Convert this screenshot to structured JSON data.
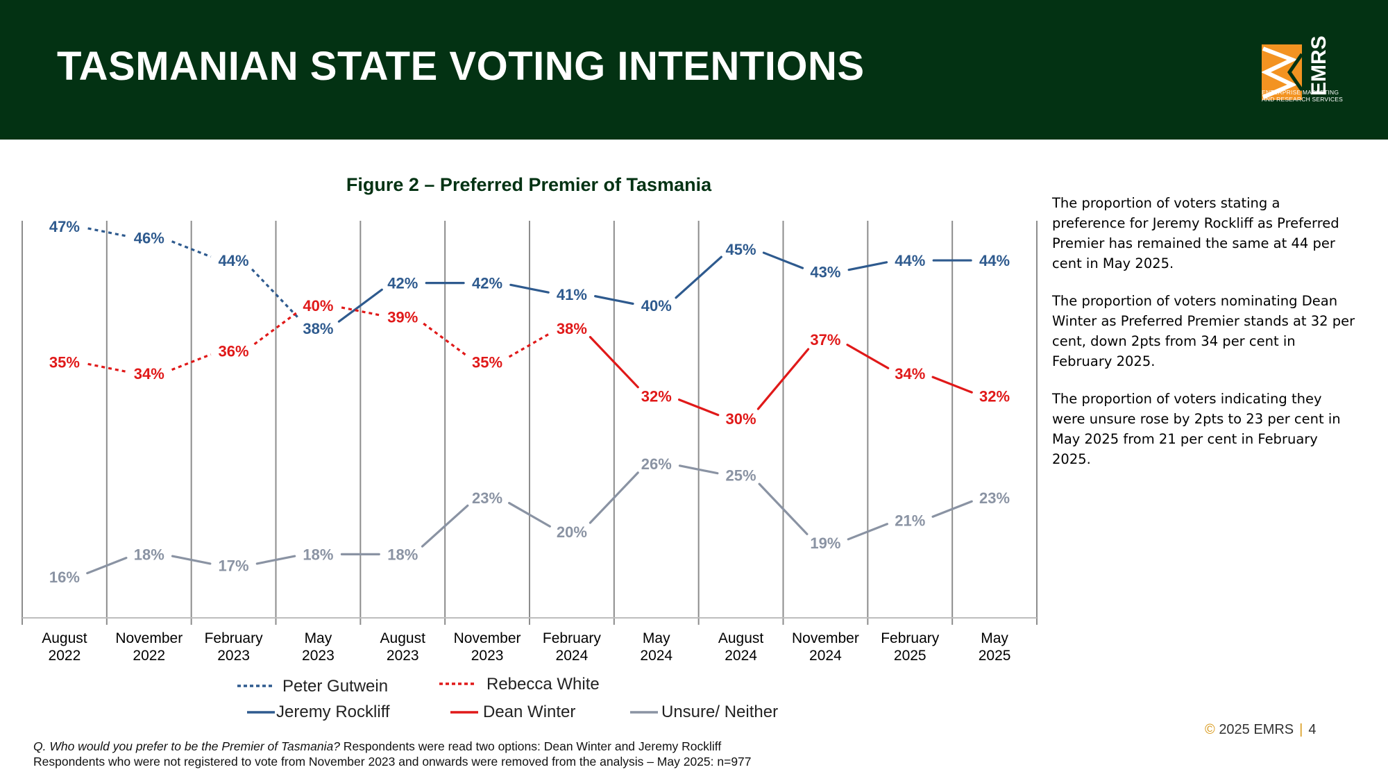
{
  "header": {
    "title": "TASMANIAN STATE VOTING INTENTIONS"
  },
  "logo": {
    "text": "EMRS",
    "tagline_1": "ENTERPRISE MARKETING",
    "tagline_2": "AND RESEARCH SERVICES"
  },
  "chart_data": {
    "type": "line",
    "title": "Figure 2 – Preferred Premier of Tasmania",
    "categories": [
      [
        "August",
        "2022"
      ],
      [
        "November",
        "2022"
      ],
      [
        "February",
        "2023"
      ],
      [
        "May",
        "2023"
      ],
      [
        "August",
        "2023"
      ],
      [
        "November",
        "2023"
      ],
      [
        "February",
        "2024"
      ],
      [
        "May",
        "2024"
      ],
      [
        "August",
        "2024"
      ],
      [
        "November",
        "2024"
      ],
      [
        "February",
        "2025"
      ],
      [
        "May",
        "2025"
      ]
    ],
    "ylim": [
      0,
      50
    ],
    "grid": "vertical",
    "series": [
      {
        "name": "Jeremy Rockliff",
        "color": "#2e5a8e",
        "values": [
          47,
          46,
          44,
          38,
          42,
          42,
          41,
          40,
          45,
          43,
          44,
          44
        ],
        "labels": [
          "47%",
          "46%",
          "44%",
          "38%",
          "42%",
          "42%",
          "41%",
          "40%",
          "45%",
          "43%",
          "44%",
          "44%"
        ]
      },
      {
        "name": "Dean Winter",
        "color": "#e01919",
        "values": [
          35,
          34,
          36,
          40,
          39,
          35,
          38,
          32,
          30,
          37,
          34,
          32
        ],
        "labels": [
          "35%",
          "34%",
          "36%",
          "40%",
          "39%",
          "35%",
          "38%",
          "32%",
          "30%",
          "37%",
          "34%",
          "32%"
        ]
      },
      {
        "name": "Unsure/ Neither",
        "color": "#8a93a3",
        "values": [
          16,
          18,
          17,
          18,
          18,
          23,
          20,
          26,
          25,
          19,
          21,
          23
        ],
        "labels": [
          "16%",
          "18%",
          "17%",
          "18%",
          "18%",
          "23%",
          "20%",
          "26%",
          "25%",
          "19%",
          "21%",
          "23%"
        ]
      }
    ],
    "notes": "Segments Aug 2022–May 2023 (blue) were Peter Gutwein; red Aug 2022–Feb 2024 were Rebecca White (dotted lines).",
    "legend": {
      "items": [
        "Peter Gutwein",
        "Rebecca White",
        "Jeremy Rockliff",
        "Dean Winter",
        "Unsure/ Neither"
      ],
      "position": "bottom"
    }
  },
  "commentary": [
    "The proportion of voters stating a preference for Jeremy Rockliff as Preferred Premier has remained the same at 44 per cent in May 2025.",
    "The proportion of voters nominating Dean Winter as Preferred Premier stands at 32 per cent, down 2pts from 34 per cent in February 2025.",
    "The proportion of voters indicating they were unsure rose by 2pts to 23 per cent in May 2025 from 21 per cent in February 2025."
  ],
  "footnote": {
    "question": "Q. Who would you prefer to be the Premier of Tasmania?",
    "line1": " Respondents were read two options: Dean Winter and Jeremy Rockliff",
    "line2": "Respondents who were not registered to vote from November 2023 and onwards were removed from the analysis – May 2025: n=977"
  },
  "copyright": {
    "symbol": "©",
    "text": "2025 EMRS",
    "page": "4"
  }
}
